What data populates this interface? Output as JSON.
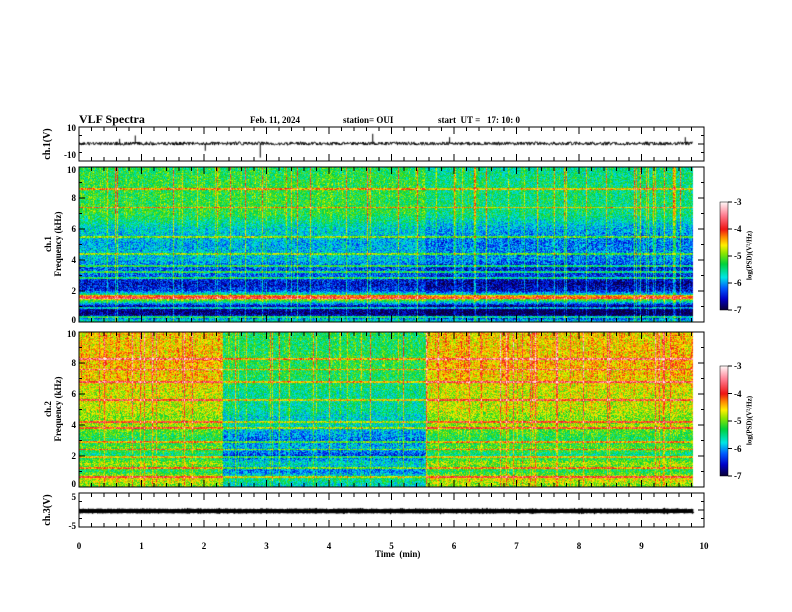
{
  "header": {
    "title": "VLF Spectra",
    "date": "Feb. 11, 2024",
    "station": "station= OUI",
    "start_ut": "start  UT =   17: 10: 0"
  },
  "chart_data": [
    {
      "type": "line",
      "name": "ch1-waveform",
      "ylabel": "ch.1(V)",
      "ylim": [
        -10,
        10
      ],
      "ytick_labels": [
        "10",
        "-10"
      ],
      "xlim": [
        0,
        10
      ],
      "data_end_min": 9.83,
      "baseline": 0.3,
      "noise_amplitude": 1.0,
      "spikes": [
        {
          "t": 0.65,
          "v": 3
        },
        {
          "t": 0.9,
          "v": 5
        },
        {
          "t": 2.02,
          "v": -4
        },
        {
          "t": 2.9,
          "v": -8
        },
        {
          "t": 4.7,
          "v": 6
        },
        {
          "t": 5.93,
          "v": 4
        },
        {
          "t": 9.7,
          "v": 4
        }
      ]
    },
    {
      "type": "heatmap",
      "name": "ch1-spectrogram",
      "ylabel": "ch.1\nFrequency (kHz)",
      "ylim": [
        0,
        10
      ],
      "ytick_labels": [
        "0",
        "2",
        "4",
        "6",
        "8",
        "10"
      ],
      "xlim": [
        0,
        10
      ],
      "data_end_min": 9.83,
      "colorbar": {
        "label": "log(PSD)(V²/Hz)",
        "range": [
          -7,
          -3
        ],
        "tick_labels": [
          "-3",
          "-4",
          "-5",
          "-6",
          "-7"
        ]
      },
      "profile_khz": [
        0,
        0.5,
        1,
        1.5,
        2,
        2.5,
        3,
        3.5,
        4,
        4.5,
        5,
        6,
        7,
        8,
        9,
        10
      ],
      "profile_log_psd": [
        -5.6,
        -6.9,
        -6.7,
        -4.6,
        -6.4,
        -6.6,
        -6.2,
        -6.3,
        -5.9,
        -5.9,
        -6.0,
        -5.8,
        -5.3,
        -5.3,
        -5.3,
        -5.4
      ],
      "line_bands_khz": [
        0.3,
        0.9,
        1.5,
        1.65,
        2.8,
        3.2,
        3.6,
        4.4,
        5.5,
        7.4,
        8.6
      ],
      "segment_shift": [
        {
          "from_min": 5.55,
          "to_min": 9.83,
          "delta_log_psd": -0.2
        }
      ]
    },
    {
      "type": "heatmap",
      "name": "ch2-spectrogram",
      "ylabel": "ch.2\nFrequency (kHz)",
      "ylim": [
        0,
        10
      ],
      "ytick_labels": [
        "0",
        "2",
        "4",
        "6",
        "8",
        "10"
      ],
      "xlim": [
        0,
        10
      ],
      "data_end_min": 9.83,
      "colorbar": {
        "label": "log(PSD)(V²/Hz)",
        "range": [
          -7,
          -3
        ],
        "tick_labels": [
          "-3",
          "-4",
          "-5",
          "-6",
          "-7"
        ]
      },
      "profile_khz": [
        0,
        0.5,
        1,
        1.5,
        2,
        2.5,
        3,
        3.5,
        4,
        4.5,
        5,
        6,
        7,
        8,
        9,
        10
      ],
      "profile_log_psd": [
        -5.0,
        -4.7,
        -5.4,
        -4.9,
        -5.6,
        -5.1,
        -5.4,
        -5.2,
        -4.9,
        -5.0,
        -4.8,
        -4.8,
        -4.6,
        -4.5,
        -4.6,
        -4.6
      ],
      "line_bands_khz": [
        0.6,
        1.2,
        1.9,
        2.4,
        2.9,
        3.8,
        4.2,
        5.6,
        6.8,
        7.6,
        8.3
      ],
      "segment_shift": [
        {
          "from_min": 2.3,
          "to_min": 5.55,
          "delta_log_psd": -0.8
        }
      ]
    },
    {
      "type": "line",
      "name": "ch3-waveform",
      "ylabel": "ch.3(V)",
      "ylim": [
        -5,
        5
      ],
      "ytick_labels": [
        "5",
        "-5"
      ],
      "xlim": [
        0,
        10
      ],
      "data_end_min": 9.83,
      "baseline": -0.3,
      "noise_amplitude": 0.1,
      "spikes": []
    }
  ],
  "xaxis": {
    "label": "Time  (min)",
    "tick_labels": [
      "0",
      "1",
      "2",
      "3",
      "4",
      "5",
      "6",
      "7",
      "8",
      "9",
      "10"
    ]
  }
}
